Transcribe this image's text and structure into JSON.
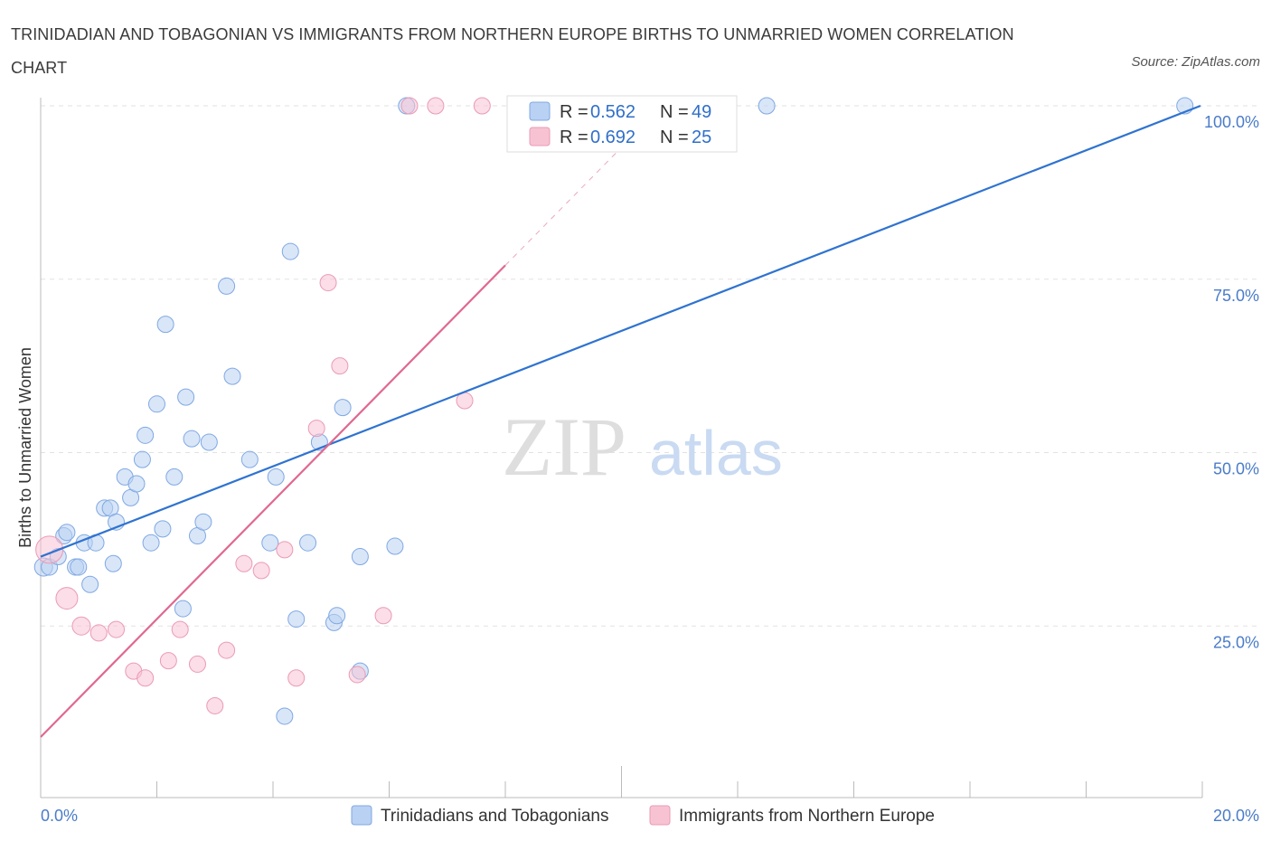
{
  "title": "TRINIDADIAN AND TOBAGONIAN VS IMMIGRANTS FROM NORTHERN EUROPE BIRTHS TO UNMARRIED WOMEN CORRELATION CHART",
  "source": "Source: ZipAtlas.com",
  "colors": {
    "blue": "#2f73d0",
    "blue_fill": "#b9d1f3",
    "pink": "#e0688f",
    "pink_fill": "#f7c3d3"
  },
  "legend": {
    "rows": [
      {
        "r_label": "R = ",
        "r_value": "0.562",
        "n_label": "N = ",
        "n_value": "49"
      },
      {
        "r_label": "R = ",
        "r_value": "0.692",
        "n_label": "N = ",
        "n_value": "25"
      }
    ]
  },
  "chart_data": {
    "type": "scatter",
    "ylabel": "Births to Unmarried Women",
    "xlim": [
      0,
      20
    ],
    "ylim": [
      0,
      100
    ],
    "x_tick_labels": [
      "0.0%",
      "20.0%"
    ],
    "y_ticks": [
      25,
      50,
      75,
      100
    ],
    "y_tick_labels": [
      "25.0%",
      "50.0%",
      "75.0%",
      "100.0%"
    ],
    "grid": true,
    "series": [
      {
        "name": "Trinidadians and Tobagonians",
        "points": [
          [
            0.05,
            33.5
          ],
          [
            0.15,
            33.5
          ],
          [
            0.3,
            35
          ],
          [
            0.4,
            38
          ],
          [
            0.45,
            38.5
          ],
          [
            0.6,
            33.5
          ],
          [
            0.65,
            33.5
          ],
          [
            0.75,
            37
          ],
          [
            0.85,
            31
          ],
          [
            0.95,
            37
          ],
          [
            1.1,
            42
          ],
          [
            1.2,
            42
          ],
          [
            1.25,
            34
          ],
          [
            1.3,
            40
          ],
          [
            1.45,
            46.5
          ],
          [
            1.55,
            43.5
          ],
          [
            1.65,
            45.5
          ],
          [
            1.75,
            49
          ],
          [
            1.8,
            52.5
          ],
          [
            1.9,
            37
          ],
          [
            2.0,
            57
          ],
          [
            2.1,
            39
          ],
          [
            2.15,
            68.5
          ],
          [
            2.3,
            46.5
          ],
          [
            2.45,
            27.5
          ],
          [
            2.5,
            58
          ],
          [
            2.6,
            52
          ],
          [
            2.7,
            38
          ],
          [
            2.8,
            40
          ],
          [
            2.9,
            51.5
          ],
          [
            3.2,
            74
          ],
          [
            3.3,
            61
          ],
          [
            3.6,
            49
          ],
          [
            3.95,
            37
          ],
          [
            4.05,
            46.5
          ],
          [
            4.2,
            12
          ],
          [
            4.3,
            79
          ],
          [
            4.4,
            26
          ],
          [
            4.6,
            37
          ],
          [
            4.8,
            51.5
          ],
          [
            5.05,
            25.5
          ],
          [
            5.1,
            26.5
          ],
          [
            5.2,
            56.5
          ],
          [
            5.5,
            35
          ],
          [
            5.5,
            18.5
          ],
          [
            6.1,
            36.5
          ],
          [
            6.3,
            100
          ],
          [
            12.5,
            100
          ],
          [
            19.7,
            100
          ]
        ],
        "trend": {
          "x": [
            0,
            20
          ],
          "y": [
            35,
            100
          ]
        }
      },
      {
        "name": "Immigrants from Northern Europe",
        "points": [
          [
            0.15,
            36
          ],
          [
            0.45,
            29
          ],
          [
            0.7,
            25
          ],
          [
            1.0,
            24
          ],
          [
            1.3,
            24.5
          ],
          [
            1.6,
            18.5
          ],
          [
            1.8,
            17.5
          ],
          [
            2.2,
            20
          ],
          [
            2.4,
            24.5
          ],
          [
            2.7,
            19.5
          ],
          [
            3.0,
            13.5
          ],
          [
            3.2,
            21.5
          ],
          [
            3.5,
            34
          ],
          [
            3.8,
            33
          ],
          [
            4.2,
            36
          ],
          [
            4.4,
            17.5
          ],
          [
            4.75,
            53.5
          ],
          [
            4.95,
            74.5
          ],
          [
            5.15,
            62.5
          ],
          [
            5.45,
            18
          ],
          [
            5.9,
            26.5
          ],
          [
            6.35,
            100
          ],
          [
            6.8,
            100
          ],
          [
            7.6,
            100
          ],
          [
            7.3,
            57.5
          ]
        ],
        "trend": {
          "x": [
            0,
            8
          ],
          "y": [
            9,
            77
          ],
          "dashed_x": [
            8,
            10
          ],
          "dashed_y": [
            77,
            94
          ]
        }
      }
    ]
  }
}
